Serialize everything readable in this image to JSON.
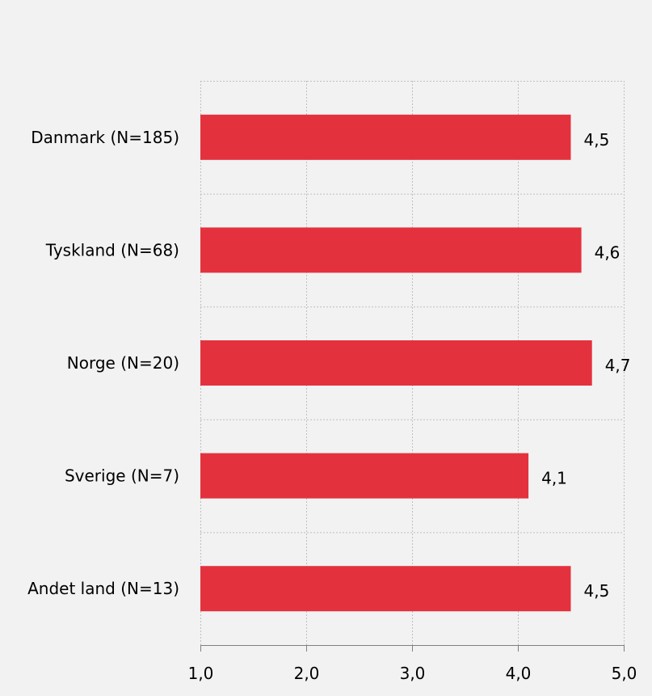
{
  "chart_data": {
    "type": "bar",
    "orientation": "horizontal",
    "categories": [
      "Danmark (N=185)",
      "Tyskland (N=68)",
      "Norge (N=20)",
      "Sverige (N=7)",
      "Andet land (N=13)"
    ],
    "values": [
      4.5,
      4.6,
      4.7,
      4.1,
      4.5
    ],
    "value_labels": [
      "4,5",
      "4,6",
      "4,7",
      "4,1",
      "4,5"
    ],
    "xlim": [
      1,
      5
    ],
    "xticks": [
      1,
      2,
      3,
      4,
      5
    ],
    "xtick_labels": [
      "1,0",
      "2,0",
      "3,0",
      "4,0",
      "5,0"
    ],
    "grid": true,
    "bar_color": "#e4313e",
    "background": "#f2f2f2"
  }
}
